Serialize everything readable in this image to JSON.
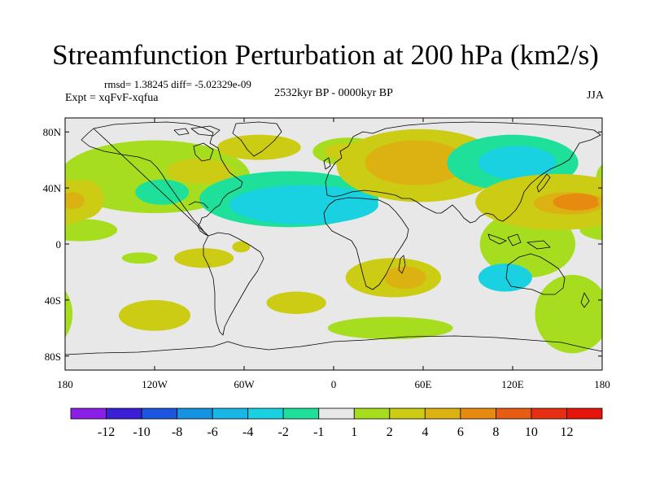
{
  "chart_data": {
    "type": "heatmap",
    "title": "Streamfunction Perturbation at 200 hPa (km2/s)",
    "stats": "rmsd= 1.38245  diff= -5.02329e-09",
    "period": "2532kyr BP - 0000kyr BP",
    "experiment": "Expt = xqFvF-xqfua",
    "season": "JJA",
    "x_axis": {
      "range": [
        -180,
        180
      ],
      "ticks": [
        {
          "value": -180,
          "label": "180"
        },
        {
          "value": -120,
          "label": "120W"
        },
        {
          "value": -60,
          "label": "60W"
        },
        {
          "value": 0,
          "label": "0"
        },
        {
          "value": 60,
          "label": "60E"
        },
        {
          "value": 120,
          "label": "120E"
        },
        {
          "value": 180,
          "label": "180"
        }
      ]
    },
    "y_axis": {
      "range": [
        -90,
        90
      ],
      "ticks": [
        {
          "value": 80,
          "label": "80N"
        },
        {
          "value": 40,
          "label": "40N"
        },
        {
          "value": 0,
          "label": "0"
        },
        {
          "value": -40,
          "label": "40S"
        },
        {
          "value": -80,
          "label": "80S"
        }
      ]
    },
    "colorbar": {
      "labels": [
        "-12",
        "-10",
        "-8",
        "-6",
        "-4",
        "-2",
        "-1",
        "1",
        "2",
        "4",
        "6",
        "8",
        "10",
        "12"
      ],
      "colors": [
        "#8b1fe6",
        "#3a1fd6",
        "#1c55e0",
        "#1592e0",
        "#18b7e6",
        "#19d1e0",
        "#1ee09a",
        "#e8e8e8",
        "#a6dd1e",
        "#cccc14",
        "#dcb212",
        "#e68a10",
        "#e65c12",
        "#e62e12",
        "#e6140a"
      ]
    },
    "anomaly_regions": [
      {
        "lon": -170,
        "lat": 10,
        "rlon": 25,
        "rlat": 8,
        "level": 1
      },
      {
        "lon": -130,
        "lat": -10,
        "rlon": 12,
        "rlat": 4,
        "level": 1
      },
      {
        "lon": -87,
        "lat": -10,
        "rlon": 20,
        "rlat": 7,
        "level": 2
      },
      {
        "lon": -62,
        "lat": -2,
        "rlon": 6,
        "rlat": 4,
        "level": 2
      },
      {
        "lon": -120,
        "lat": -51,
        "rlon": 24,
        "rlat": 11,
        "level": 2
      },
      {
        "lon": -25,
        "lat": -42,
        "rlon": 20,
        "rlat": 8,
        "level": 2
      },
      {
        "lon": 40,
        "lat": -24,
        "rlon": 32,
        "rlat": 14,
        "level": 2
      },
      {
        "lon": 48,
        "lat": -24,
        "rlon": 14,
        "rlat": 8,
        "level": 3
      },
      {
        "lon": 38,
        "lat": -60,
        "rlon": 42,
        "rlat": 8,
        "level": 1
      },
      {
        "lon": 130,
        "lat": 0,
        "rlon": 32,
        "rlat": 24,
        "level": 1
      },
      {
        "lon": 115,
        "lat": -24,
        "rlon": 18,
        "rlat": 10,
        "level": -2
      },
      {
        "lon": 160,
        "lat": -50,
        "rlon": 25,
        "rlat": 28,
        "level": 1
      },
      {
        "lon": -120,
        "lat": 48,
        "rlon": 64,
        "rlat": 26,
        "level": 1
      },
      {
        "lon": -90,
        "lat": 52,
        "rlon": 22,
        "rlat": 9,
        "level": 2
      },
      {
        "lon": -50,
        "lat": 69,
        "rlon": 28,
        "rlat": 9,
        "level": 2
      },
      {
        "lon": -30,
        "lat": 32,
        "rlon": 60,
        "rlat": 20,
        "level": -1
      },
      {
        "lon": -20,
        "lat": 28,
        "rlon": 50,
        "rlat": 14,
        "level": -2
      },
      {
        "lon": -115,
        "lat": 37,
        "rlon": 18,
        "rlat": 9,
        "level": -1
      },
      {
        "lon": 10,
        "lat": 66,
        "rlon": 24,
        "rlat": 10,
        "level": 1
      },
      {
        "lon": 8,
        "lat": 66,
        "rlon": 14,
        "rlat": 6,
        "level": 2
      },
      {
        "lon": 58,
        "lat": 56,
        "rlon": 56,
        "rlat": 26,
        "level": 2
      },
      {
        "lon": 55,
        "lat": 58,
        "rlon": 34,
        "rlat": 16,
        "level": 3
      },
      {
        "lon": 120,
        "lat": 58,
        "rlon": 44,
        "rlat": 20,
        "level": -1
      },
      {
        "lon": 123,
        "lat": 58,
        "rlon": 26,
        "rlat": 12,
        "level": -2
      },
      {
        "lon": 150,
        "lat": 30,
        "rlon": 55,
        "rlat": 20,
        "level": 2
      },
      {
        "lon": 158,
        "lat": 29,
        "rlon": 24,
        "rlat": 8,
        "level": 3
      },
      {
        "lon": 163,
        "lat": 30,
        "rlon": 16,
        "rlat": 6,
        "level": 4
      },
      {
        "lon": -168,
        "lat": 32,
        "rlon": 14,
        "rlat": 14,
        "level": 2
      },
      {
        "lon": -175,
        "lat": 31,
        "rlon": 8,
        "rlat": 6,
        "level": 3
      }
    ]
  }
}
